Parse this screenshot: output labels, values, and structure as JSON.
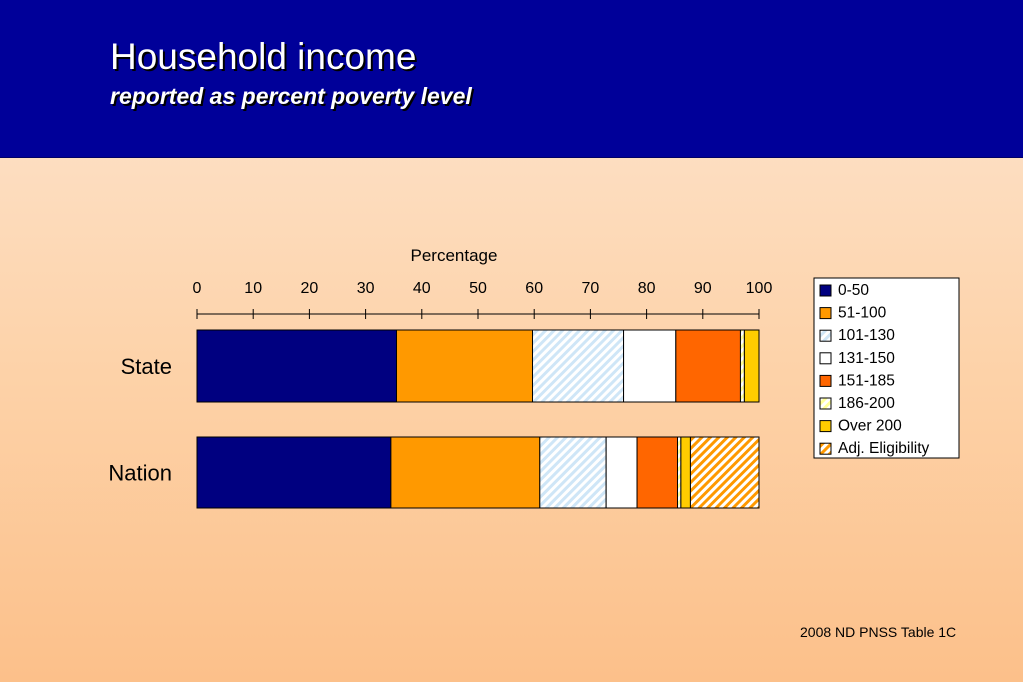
{
  "slide": {
    "title": "Household income",
    "subtitle": "reported as percent poverty level",
    "footnote": "2008 ND PNSS Table 1C"
  },
  "chart_data": {
    "type": "bar",
    "orientation": "horizontal",
    "stacked": true,
    "title": "",
    "xlabel": "Percentage",
    "ylabel": "",
    "xlim": [
      0,
      100
    ],
    "x_ticks": [
      0,
      10,
      20,
      30,
      40,
      50,
      60,
      70,
      80,
      90,
      100
    ],
    "x_axis_position": "top",
    "grid": false,
    "legend_position": "right",
    "categories": [
      "State",
      "Nation"
    ],
    "series": [
      {
        "name": "0-50",
        "color": "#000080",
        "pattern": "solid",
        "values": [
          35.5,
          34.5
        ]
      },
      {
        "name": "51-100",
        "color": "#ff9900",
        "pattern": "solid",
        "values": [
          24.2,
          26.5
        ]
      },
      {
        "name": "101-130",
        "color": "#cfe6f7",
        "pattern": "diagonal-hatch",
        "values": [
          16.2,
          11.8
        ]
      },
      {
        "name": "131-150",
        "color": "#ffffff",
        "pattern": "solid",
        "values": [
          9.3,
          5.5
        ]
      },
      {
        "name": "151-185",
        "color": "#ff6600",
        "pattern": "solid",
        "values": [
          11.5,
          7.2
        ]
      },
      {
        "name": "186-200",
        "color": "#ffff99",
        "pattern": "diagonal-hatch",
        "values": [
          0.7,
          0.6
        ]
      },
      {
        "name": "Over 200",
        "color": "#ffcc00",
        "pattern": "solid",
        "values": [
          2.6,
          1.7
        ]
      },
      {
        "name": "Adj. Eligibility",
        "color": "#ff9900",
        "pattern": "diagonal-hatch",
        "values": [
          0,
          12.2
        ]
      }
    ]
  }
}
